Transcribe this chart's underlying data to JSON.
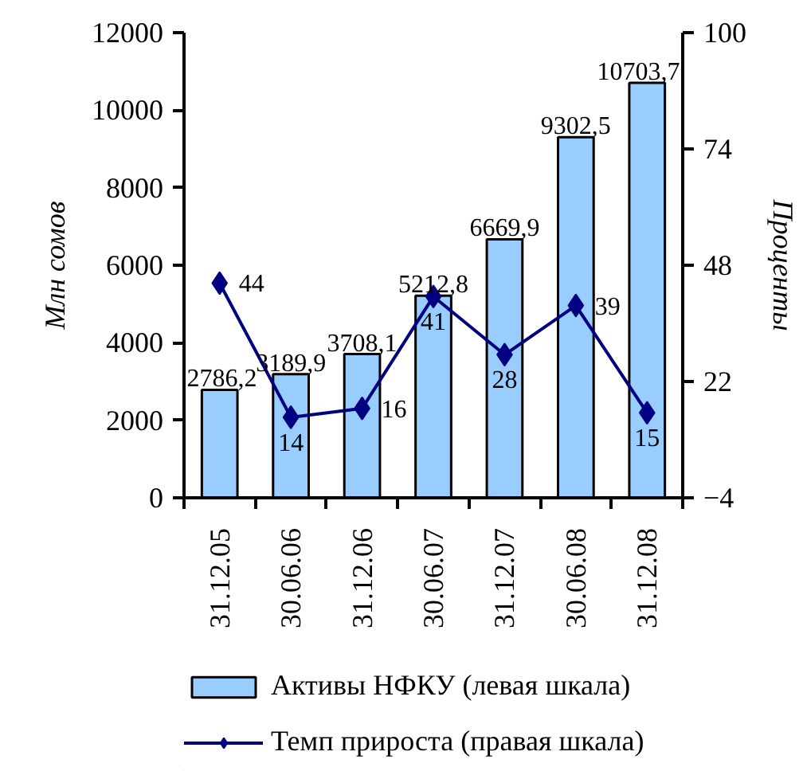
{
  "chart_data": {
    "type": "bar",
    "categories": [
      "31.12.05",
      "30.06.06",
      "31.12.06",
      "30.06.07",
      "31.12.07",
      "30.06.08",
      "31.12.08"
    ],
    "series": [
      {
        "name": "Активы НФКУ (левая шкала)",
        "color": "#99ccff",
        "values": [
          2786.2,
          3189.9,
          3708.1,
          5212.8,
          6669.9,
          9302.5,
          10703.7
        ],
        "value_labels": [
          "2786,2",
          "3189,9",
          "3708,1",
          "5212,8",
          "6669,9",
          "9302,5",
          "10703,7"
        ]
      },
      {
        "name": "Темп прироста (правая шкала)",
        "type": "line",
        "axis": "y2",
        "color": "#000080",
        "values": [
          44,
          14,
          16,
          41,
          28,
          39,
          15
        ],
        "value_labels": [
          "44",
          "14",
          "16",
          "41",
          "28",
          "39",
          "15"
        ]
      }
    ],
    "ylabel": "Млн сомов",
    "y2label": "Проценты",
    "ylim": [
      0,
      12000
    ],
    "yticks": [
      0,
      2000,
      4000,
      6000,
      8000,
      10000,
      12000
    ],
    "y2lim": [
      -4,
      100
    ],
    "y2ticks": [
      -4,
      22,
      48,
      74,
      100
    ],
    "marker": "diamond",
    "legend": "bottom"
  }
}
